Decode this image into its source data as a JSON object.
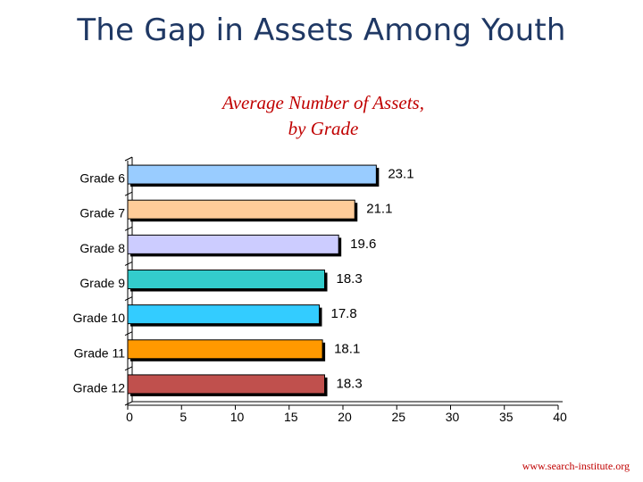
{
  "slide": {
    "title": "The Gap in Assets Among Youth",
    "footer": "www.search-institute.org"
  },
  "colors": {
    "title": "#1f3864",
    "chart_title": "#c00000",
    "footer": "#c00000",
    "bar_shadow": "#000000",
    "axis": "#000000"
  },
  "chart_data": {
    "type": "bar",
    "orientation": "horizontal",
    "title_lines": [
      "Average Number of Assets,",
      "by Grade"
    ],
    "categories": [
      "Grade 6",
      "Grade 7",
      "Grade 8",
      "Grade 9",
      "Grade 10",
      "Grade 11",
      "Grade 12"
    ],
    "values": [
      23.1,
      21.1,
      19.6,
      18.3,
      17.8,
      18.1,
      18.3
    ],
    "value_labels": [
      "23.1",
      "21.1",
      "19.6",
      "18.3",
      "17.8",
      "18.1",
      "18.3"
    ],
    "bar_colors": [
      "#99ccff",
      "#ffcc99",
      "#ccccff",
      "#33cccc",
      "#33ccff",
      "#ff9900",
      "#c0504d"
    ],
    "xlim": [
      0,
      40
    ],
    "xticks": [
      0,
      5,
      10,
      15,
      20,
      25,
      30,
      35,
      40
    ],
    "xlabel": "",
    "ylabel": "",
    "grid": false,
    "legend": "none"
  }
}
